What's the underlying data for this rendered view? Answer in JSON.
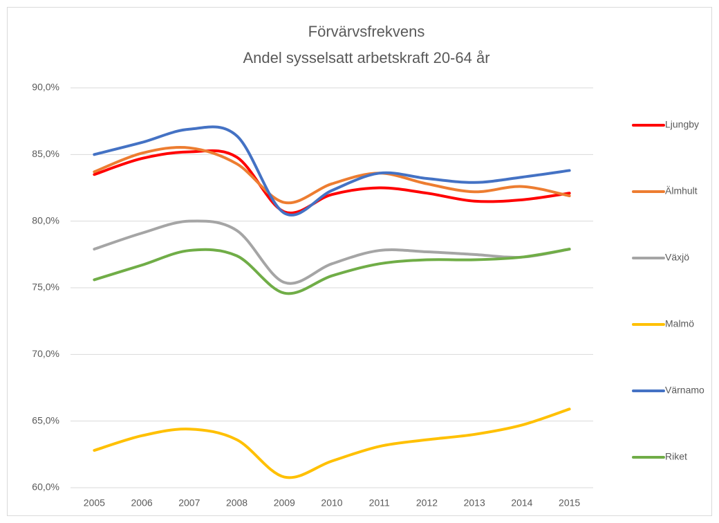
{
  "chart_data": {
    "type": "line",
    "title": "Förvärvsfrekvens",
    "subtitle": "Andel sysselsatt arbetskraft 20-64 år",
    "x": [
      "2005",
      "2006",
      "2007",
      "2008",
      "2009",
      "2010",
      "2011",
      "2012",
      "2013",
      "2014",
      "2015"
    ],
    "series": [
      {
        "name": "Ljungby",
        "color": "#ff0000",
        "values": [
          83.5,
          84.7,
          85.2,
          84.8,
          80.7,
          82.0,
          82.5,
          82.1,
          81.5,
          81.6,
          82.1
        ]
      },
      {
        "name": "Älmhult",
        "color": "#ed7d31",
        "values": [
          83.7,
          85.1,
          85.5,
          84.3,
          81.4,
          82.8,
          83.6,
          82.8,
          82.2,
          82.6,
          81.9
        ]
      },
      {
        "name": "Växjö",
        "color": "#a5a5a5",
        "values": [
          77.9,
          79.1,
          80.0,
          79.3,
          75.4,
          76.8,
          77.8,
          77.7,
          77.5,
          77.3,
          77.9
        ]
      },
      {
        "name": "Malmö",
        "color": "#ffc000",
        "values": [
          62.8,
          63.9,
          64.4,
          63.6,
          60.8,
          62.0,
          63.1,
          63.6,
          64.0,
          64.7,
          65.9
        ]
      },
      {
        "name": "Värnamo",
        "color": "#4472c4",
        "values": [
          85.0,
          85.9,
          86.9,
          86.4,
          80.6,
          82.3,
          83.6,
          83.2,
          82.9,
          83.3,
          83.8
        ]
      },
      {
        "name": "Riket",
        "color": "#70ad47",
        "values": [
          75.6,
          76.7,
          77.8,
          77.4,
          74.6,
          75.9,
          76.8,
          77.1,
          77.1,
          77.3,
          77.9
        ]
      }
    ],
    "ylim": [
      60,
      90
    ],
    "yticks": [
      {
        "value": 60,
        "label": "60,0%"
      },
      {
        "value": 65,
        "label": "65,0%"
      },
      {
        "value": 70,
        "label": "70,0%"
      },
      {
        "value": 75,
        "label": "75,0%"
      },
      {
        "value": 80,
        "label": "80,0%"
      },
      {
        "value": 85,
        "label": "85,0%"
      },
      {
        "value": 90,
        "label": "90,0%"
      }
    ],
    "grid": true,
    "legend": "right"
  }
}
